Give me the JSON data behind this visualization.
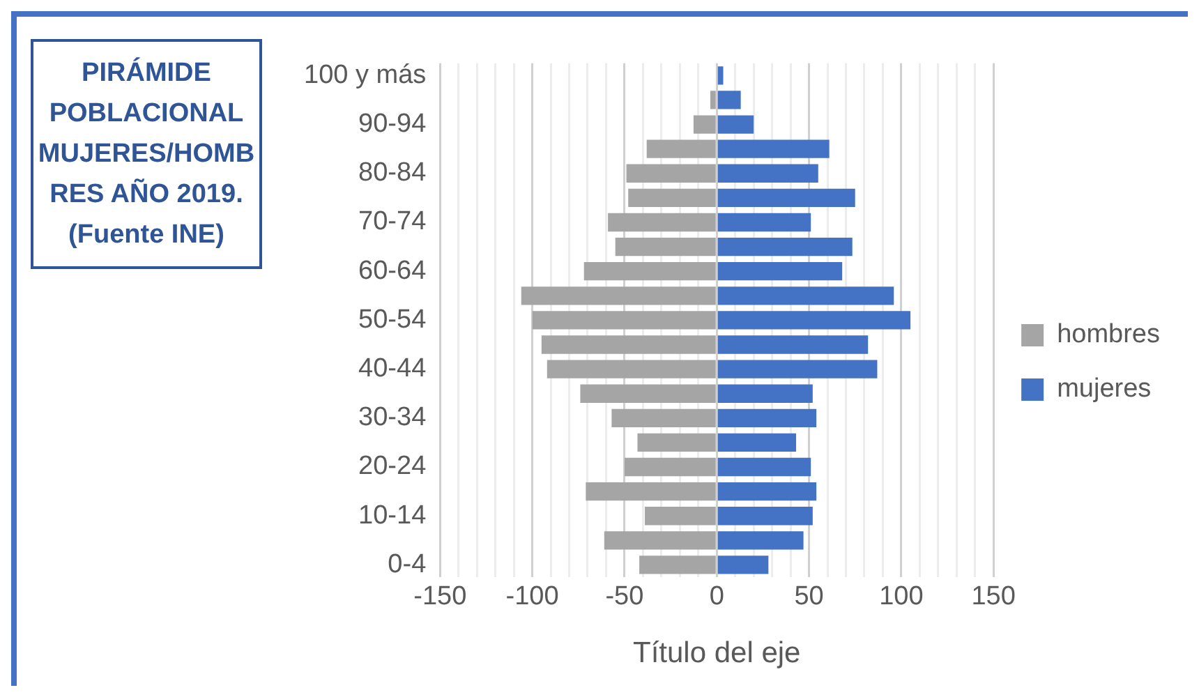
{
  "chart_data": {
    "type": "bar",
    "orientation": "horizontal",
    "stacked": true,
    "title": "PIRÁMIDE POBLACIONAL MUJERES/HOMBRES AÑO 2019. (Fuente INE)",
    "xlabel": "Título del eje",
    "categories": [
      "100 y más",
      null,
      "90-94",
      null,
      "80-84",
      null,
      "70-74",
      null,
      "60-64",
      null,
      "50-54",
      null,
      "40-44",
      null,
      "30-34",
      null,
      "20-24",
      null,
      "10-14",
      null,
      "0-4"
    ],
    "series": [
      {
        "name": "hombres",
        "color": "#a5a5a5",
        "values": [
          0,
          -3.5,
          -12.6,
          -38,
          -49,
          -48,
          -59,
          -55,
          -72,
          -106,
          -100,
          -95,
          -92,
          -74,
          -57,
          -43,
          -50,
          -71,
          -39,
          -61,
          -42
        ]
      },
      {
        "name": "mujeres",
        "color": "#4472c4",
        "values": [
          3.5,
          13,
          20,
          61,
          55,
          75,
          51,
          73.5,
          68,
          96,
          105,
          82,
          87,
          52,
          54,
          43,
          51,
          54,
          52,
          47,
          28
        ]
      }
    ],
    "xlim": [
      -150,
      150
    ],
    "xticks": [
      -150,
      {
        "value": -140,
        "label": null
      },
      {
        "value": -130,
        "label": null
      },
      {
        "value": -120,
        "label": null
      },
      {
        "value": -110,
        "label": null
      },
      -100,
      {
        "value": -90,
        "label": null
      },
      {
        "value": -80,
        "label": null
      },
      {
        "value": -70,
        "label": null
      },
      {
        "value": -60,
        "label": null
      },
      -50,
      {
        "value": -40,
        "label": null
      },
      {
        "value": -30,
        "label": null
      },
      {
        "value": -20,
        "label": null
      },
      {
        "value": -10,
        "label": null
      },
      0,
      {
        "value": 10,
        "label": null
      },
      {
        "value": 20,
        "label": null
      },
      {
        "value": 30,
        "label": null
      },
      {
        "value": 40,
        "label": null
      },
      50,
      {
        "value": 60,
        "label": null
      },
      {
        "value": 70,
        "label": null
      },
      {
        "value": 80,
        "label": null
      },
      {
        "value": 90,
        "label": null
      },
      100,
      {
        "value": 110,
        "label": null
      },
      {
        "value": 120,
        "label": null
      },
      {
        "value": 130,
        "label": null
      },
      {
        "value": 140,
        "label": null
      },
      150
    ],
    "grid": "x",
    "legend": "right"
  }
}
